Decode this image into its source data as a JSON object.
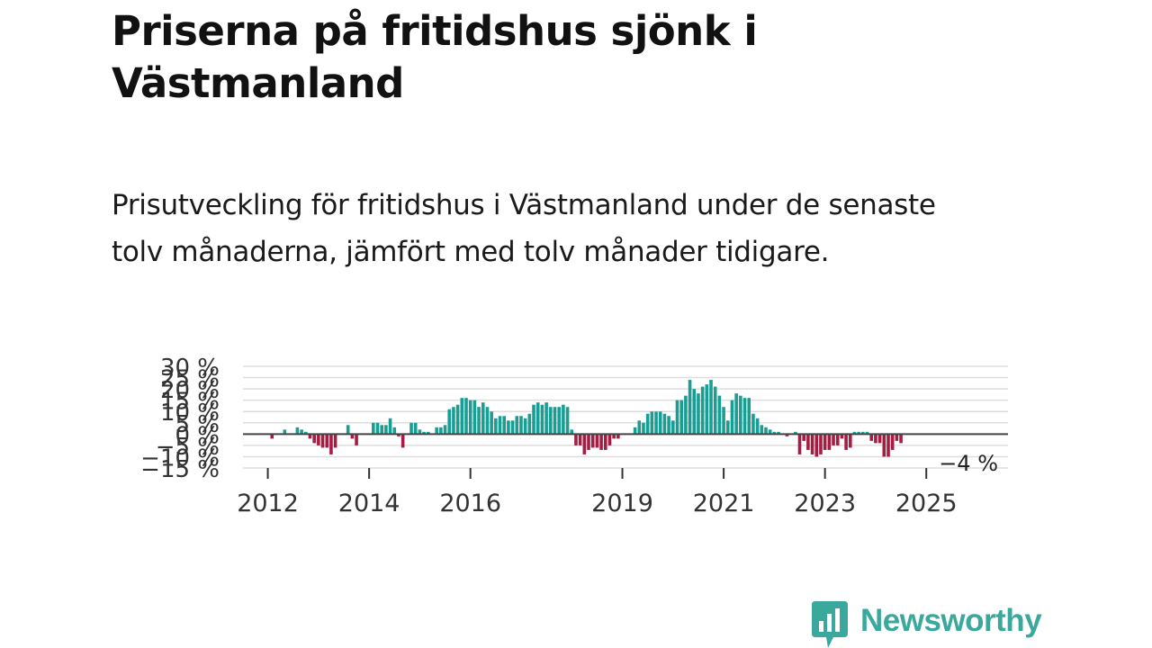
{
  "title": "Priserna på fritidshus sjönk i Västmanland",
  "subtitle": "Prisutveckling för fritidshus i Västmanland under de senaste tolv månaderna, jämfört med tolv månader tidigare.",
  "brand": {
    "name": "Newsworthy",
    "color": "#3aa89c",
    "icon": "newsworthy-logo-icon"
  },
  "colors": {
    "positive": "#1a9e94",
    "negative": "#a51d42",
    "zero_line": "#444444",
    "grid": "#dddddd"
  },
  "chart_data": {
    "type": "bar",
    "x_unit": "month",
    "x_start": "2011-10",
    "y_unit": "%",
    "ylim": [
      -15,
      30
    ],
    "y_ticks": [
      30,
      25,
      20,
      15,
      10,
      5,
      0,
      -5,
      -10,
      -15
    ],
    "y_tick_labels": [
      "30 %",
      "25 %",
      "20 %",
      "15 %",
      "10 %",
      "5 %",
      "0 %",
      "−5 %",
      "−10 %",
      "−15 %"
    ],
    "x_ticks": [
      "2012-01",
      "2014-01",
      "2016-01",
      "2019-01",
      "2021-01",
      "2023-01",
      "2025-01"
    ],
    "x_tick_labels": [
      "2012",
      "2014",
      "2016",
      "2019",
      "2021",
      "2023",
      "2025"
    ],
    "last_value_label": "−4 %",
    "grid": true,
    "values": [
      0,
      0,
      0,
      0,
      -2,
      0,
      0,
      2,
      0,
      0,
      3,
      2,
      1,
      -2,
      -4,
      -5,
      -6,
      -6,
      -9,
      -6,
      0,
      0,
      4,
      -2,
      -5,
      0,
      0,
      0,
      5,
      5,
      4,
      4,
      7,
      3,
      -1,
      -6,
      0,
      5,
      5,
      2,
      1,
      1,
      0,
      3,
      3,
      4,
      11,
      12,
      13,
      16,
      16,
      15,
      15,
      12,
      14,
      12,
      10,
      7,
      8,
      8,
      6,
      6,
      8,
      8,
      7,
      9,
      13,
      14,
      13,
      14,
      12,
      12,
      12,
      13,
      12,
      2,
      -5,
      -5,
      -9,
      -7,
      -6,
      -6,
      -7,
      -7,
      -5,
      -2,
      -2,
      0,
      0,
      0,
      3,
      6,
      5,
      9,
      10,
      10,
      10,
      9,
      8,
      6,
      15,
      15,
      17,
      24,
      20,
      18,
      21,
      22,
      24,
      21,
      17,
      12,
      6,
      15,
      18,
      17,
      16,
      16,
      9,
      7,
      4,
      3,
      2,
      1,
      1,
      0,
      -1,
      0,
      1,
      -9,
      -3,
      -7,
      -9,
      -10,
      -9,
      -7,
      -7,
      -5,
      -5,
      -2,
      -7,
      -6,
      1,
      1,
      1,
      1,
      -3,
      -4,
      -4,
      -10,
      -10,
      -7,
      -3,
      -4
    ]
  }
}
